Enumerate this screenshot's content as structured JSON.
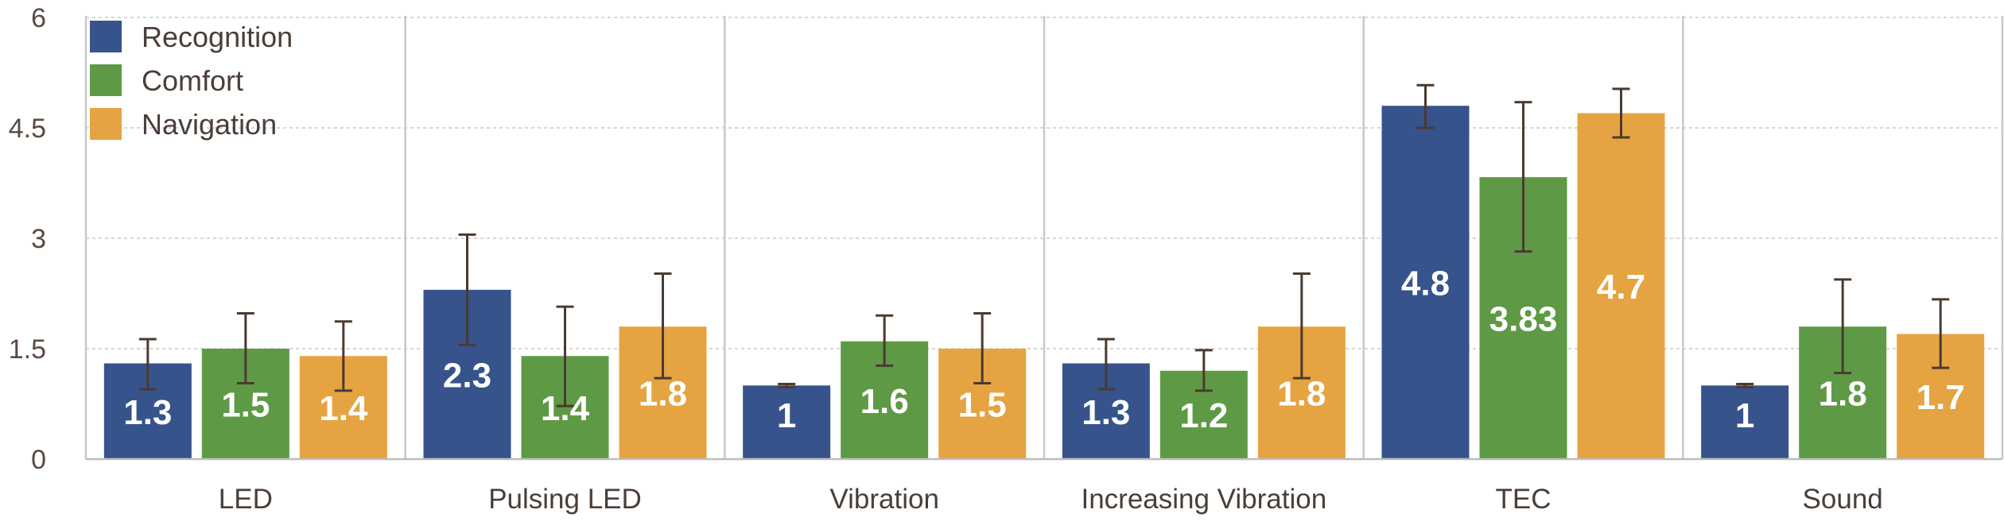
{
  "chart_data": {
    "type": "bar",
    "categories": [
      "LED",
      "Pulsing LED",
      "Vibration",
      "Increasing Vibration",
      "TEC",
      "Sound"
    ],
    "series": [
      {
        "name": "Recognition",
        "color": "#36538c",
        "values": [
          1.3,
          2.3,
          1,
          1.3,
          4.8,
          1
        ],
        "labels": [
          "1.3",
          "2.3",
          "1",
          "1.3",
          "4.8",
          "1"
        ],
        "err_low": [
          0.95,
          1.55,
          0.98,
          0.95,
          4.5,
          0.98
        ],
        "err_high": [
          1.63,
          3.05,
          1.02,
          1.63,
          5.08,
          1.02
        ]
      },
      {
        "name": "Comfort",
        "color": "#5e9a45",
        "values": [
          1.5,
          1.4,
          1.6,
          1.2,
          3.83,
          1.8
        ],
        "labels": [
          "1.5",
          "1.4",
          "1.6",
          "1.2",
          "3.83",
          "1.8"
        ],
        "err_low": [
          1.03,
          0.72,
          1.27,
          0.93,
          2.82,
          1.17
        ],
        "err_high": [
          1.98,
          2.07,
          1.95,
          1.48,
          4.85,
          2.44
        ]
      },
      {
        "name": "Navigation",
        "color": "#e5a441",
        "values": [
          1.4,
          1.8,
          1.5,
          1.8,
          4.7,
          1.7
        ],
        "labels": [
          "1.4",
          "1.8",
          "1.5",
          "1.8",
          "4.7",
          "1.7"
        ],
        "err_low": [
          0.93,
          1.1,
          1.03,
          1.1,
          4.37,
          1.24
        ],
        "err_high": [
          1.87,
          2.52,
          1.98,
          2.52,
          5.03,
          2.17
        ]
      }
    ],
    "ylim": [
      0,
      6
    ],
    "yticks": [
      {
        "value": 0,
        "label": "0"
      },
      {
        "value": 1.5,
        "label": "1.5"
      },
      {
        "value": 3,
        "label": "3"
      },
      {
        "value": 4.5,
        "label": "4.5"
      },
      {
        "value": 6,
        "label": "6"
      }
    ],
    "grid": true,
    "legend": "top-left",
    "title": "",
    "xlabel": "",
    "ylabel": ""
  }
}
